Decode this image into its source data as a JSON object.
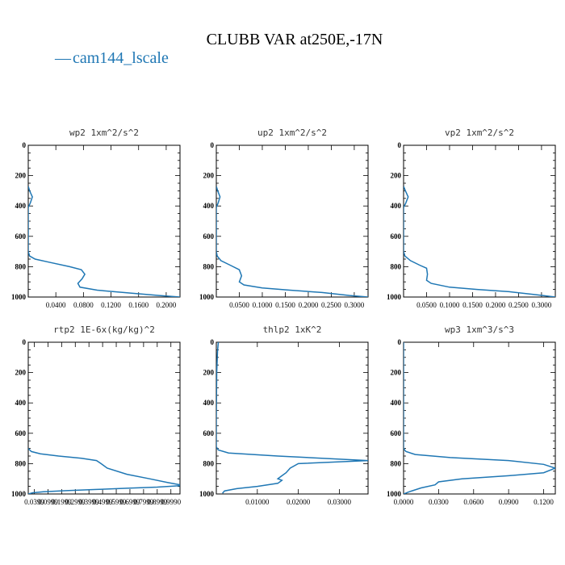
{
  "figure": {
    "title": "CLUBB VAR at250E,-17N",
    "legend": "cam144_lscale",
    "legend_marker": "—",
    "line_color": "#1f77b4"
  },
  "chart_data": [
    {
      "type": "line",
      "title": "wp2  1xm^2/s^2",
      "ylim": [
        1000,
        0
      ],
      "xlim": [
        0,
        0.22
      ],
      "yticks": [
        0,
        200,
        400,
        600,
        800,
        1000
      ],
      "xticks": [
        0.04,
        0.08,
        0.12,
        0.16,
        0.2
      ],
      "xtick_labels": [
        "0.0400",
        "0.0800",
        "0.1200",
        "0.1600",
        "0.2000"
      ],
      "series": [
        {
          "x": [
            0,
            0.002,
            0.006,
            0.003,
            0,
            0,
            0.002,
            0.01,
            0.03,
            0.06,
            0.077,
            0.082,
            0.078,
            0.072,
            0.075,
            0.1,
            0.15,
            0.19,
            0.22
          ],
          "y": [
            270,
            300,
            340,
            380,
            410,
            700,
            730,
            750,
            770,
            800,
            820,
            850,
            880,
            910,
            935,
            955,
            975,
            990,
            1000
          ]
        }
      ]
    },
    {
      "type": "line",
      "title": "up2  1xm^2/s^2",
      "ylim": [
        1000,
        0
      ],
      "xlim": [
        0,
        0.33
      ],
      "yticks": [
        0,
        200,
        400,
        600,
        800,
        1000
      ],
      "xticks": [
        0.05,
        0.1,
        0.15,
        0.2,
        0.25,
        0.3
      ],
      "xtick_labels": [
        "0.0500",
        "0.1000",
        "0.1500",
        "0.2000",
        "0.2500",
        "0.3000"
      ],
      "series": [
        {
          "x": [
            0,
            0.003,
            0.008,
            0.004,
            0,
            0,
            0.002,
            0.01,
            0.03,
            0.05,
            0.055,
            0.05,
            0.06,
            0.1,
            0.16,
            0.23,
            0.29,
            0.33
          ],
          "y": [
            270,
            300,
            340,
            380,
            410,
            700,
            730,
            760,
            790,
            820,
            860,
            900,
            920,
            940,
            955,
            970,
            990,
            1000
          ]
        }
      ]
    },
    {
      "type": "line",
      "title": "vp2  1xm^2/s^2",
      "ylim": [
        1000,
        0
      ],
      "xlim": [
        0,
        0.33
      ],
      "yticks": [
        0,
        200,
        400,
        600,
        800,
        1000
      ],
      "xticks": [
        0.05,
        0.1,
        0.15,
        0.2,
        0.25,
        0.3
      ],
      "xtick_labels": [
        "0.0500",
        "0.1000",
        "0.1500",
        "0.2000",
        "0.2500",
        "0.3000"
      ],
      "series": [
        {
          "x": [
            0,
            0.004,
            0.01,
            0.005,
            0,
            0,
            0.003,
            0.015,
            0.035,
            0.05,
            0.052,
            0.05,
            0.06,
            0.1,
            0.16,
            0.23,
            0.29,
            0.33
          ],
          "y": [
            270,
            300,
            340,
            380,
            410,
            700,
            730,
            760,
            790,
            810,
            850,
            890,
            910,
            935,
            950,
            965,
            985,
            1000
          ]
        }
      ]
    },
    {
      "type": "line",
      "title": "rtp2  1E-6x(kg/kg)^2",
      "ylim": [
        1000,
        0
      ],
      "xlim": [
        0,
        1
      ],
      "yticks": [
        0,
        200,
        400,
        600,
        800,
        1000
      ],
      "xticks": [
        0.04,
        0.13,
        0.22,
        0.31,
        0.4,
        0.49,
        0.58,
        0.67,
        0.76,
        0.85,
        0.94
      ],
      "xtick_labels": [
        "0.0399",
        "0.0999",
        "0.1999",
        "0.2999",
        "0.3999",
        "0.4999",
        "0.5999",
        "0.6999",
        "0.7999",
        "0.8999",
        "0.9990"
      ],
      "series": [
        {
          "x": [
            0,
            0.02,
            0.08,
            0.2,
            0.35,
            0.45,
            0.48,
            0.52,
            0.65,
            0.8,
            0.92,
            1.0
          ],
          "y": [
            700,
            720,
            735,
            750,
            765,
            780,
            800,
            830,
            870,
            900,
            925,
            940
          ]
        },
        {
          "x": [
            1.0,
            0.85,
            0.65,
            0.45,
            0.25,
            0.1,
            0.03,
            0.0
          ],
          "y": [
            945,
            955,
            962,
            970,
            978,
            985,
            992,
            1000
          ]
        }
      ]
    },
    {
      "type": "line",
      "title": "thlp2  1xK^2",
      "ylim": [
        1000,
        0
      ],
      "xlim": [
        0,
        0.037
      ],
      "yticks": [
        0,
        200,
        400,
        600,
        800,
        1000
      ],
      "xticks": [
        0.01,
        0.02,
        0.03
      ],
      "xtick_labels": [
        "0.01000",
        "0.02000",
        "0.03000"
      ],
      "series": [
        {
          "x": [
            0.0005,
            0.0003,
            0.0001,
            0,
            0,
            0.0005,
            0.003,
            0.015,
            0.037,
            0.02,
            0.018,
            0.017,
            0.016,
            0.015,
            0.016,
            0.015,
            0.01,
            0.005,
            0.002,
            0.0015
          ],
          "y": [
            0,
            60,
            200,
            500,
            690,
            710,
            730,
            750,
            780,
            800,
            830,
            860,
            880,
            900,
            910,
            930,
            950,
            965,
            980,
            995
          ]
        }
      ]
    },
    {
      "type": "line",
      "title": "wp3  1xm^3/s^3",
      "ylim": [
        1000,
        0
      ],
      "xlim": [
        0,
        0.13
      ],
      "yticks": [
        0,
        200,
        400,
        600,
        800,
        1000
      ],
      "xticks": [
        0,
        0.03,
        0.06,
        0.09,
        0.12
      ],
      "xtick_labels": [
        "0.0000",
        "0.0300",
        "0.0600",
        "0.0900",
        "0.1200"
      ],
      "series": [
        {
          "x": [
            0,
            0,
            0,
            0.002,
            0.01,
            0.04,
            0.09,
            0.12,
            0.13,
            0.12,
            0.09,
            0.05,
            0.03,
            0.027,
            0.015,
            0.005,
            0
          ],
          "y": [
            0,
            300,
            700,
            720,
            740,
            760,
            780,
            805,
            830,
            860,
            880,
            900,
            920,
            940,
            960,
            985,
            1000
          ]
        }
      ]
    }
  ]
}
